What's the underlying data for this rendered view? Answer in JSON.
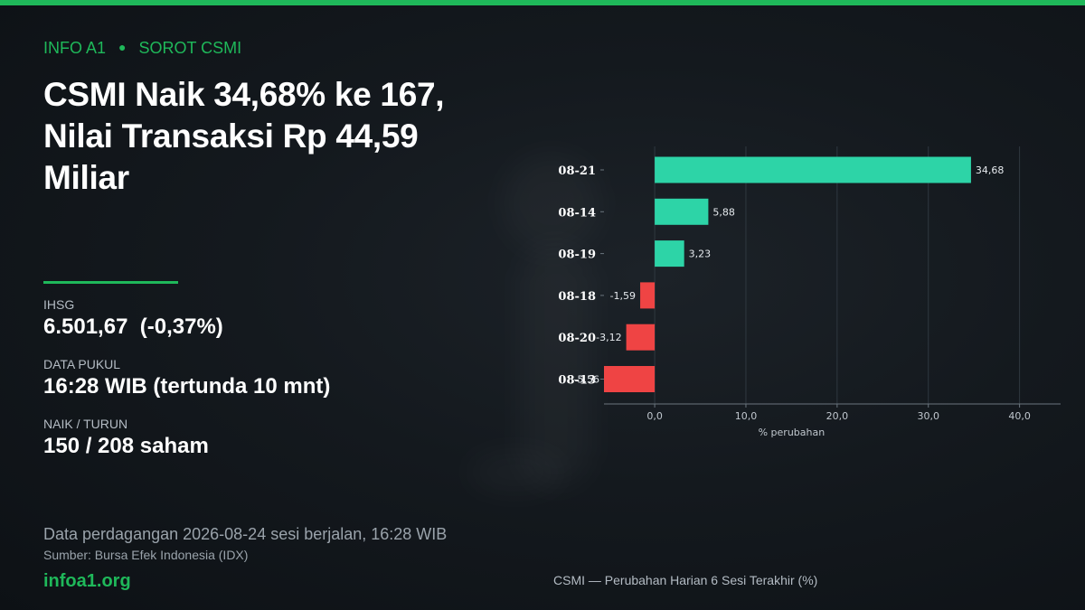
{
  "kicker": {
    "brand": "INFO A1",
    "section": "SOROT CSMI"
  },
  "headline": "CSMI Naik 34,68% ke 167, Nilai Transaksi Rp 44,59 Miliar",
  "stats": [
    {
      "label": "IHSG",
      "value": "6.501,67  (-0,37%)"
    },
    {
      "label": "DATA PUKUL",
      "value": "16:28 WIB (tertunda 10 mnt)"
    },
    {
      "label": "NAIK / TURUN",
      "value": "150 / 208 saham"
    }
  ],
  "footnote": "Data perdagangan 2026-08-24 sesi berjalan, 16:28 WIB",
  "source": "Sumber: Bursa Efek Indonesia (IDX)",
  "site": "infoa1.org",
  "colors": {
    "accent": "#1fb85a",
    "positive": "#2dd4a7",
    "negative": "#ef4444"
  },
  "chart_data": {
    "type": "bar",
    "orientation": "horizontal",
    "categories": [
      "08-21",
      "08-14",
      "08-19",
      "08-18",
      "08-20",
      "08-13"
    ],
    "values": [
      34.68,
      5.88,
      3.23,
      -1.59,
      -3.12,
      -5.56
    ],
    "value_labels": [
      "34,68",
      "5,88",
      "3,23",
      "-1,59",
      "-3,12",
      "-5,56"
    ],
    "xlabel": "% perubahan",
    "xlim": [
      -5.56,
      44.5
    ],
    "xticks": [
      0,
      10,
      20,
      30,
      40
    ],
    "xtick_labels": [
      "0,0",
      "10,0",
      "20,0",
      "30,0",
      "40,0"
    ],
    "grid": true,
    "caption": "CSMI — Perubahan Harian 6 Sesi Terakhir (%)"
  }
}
